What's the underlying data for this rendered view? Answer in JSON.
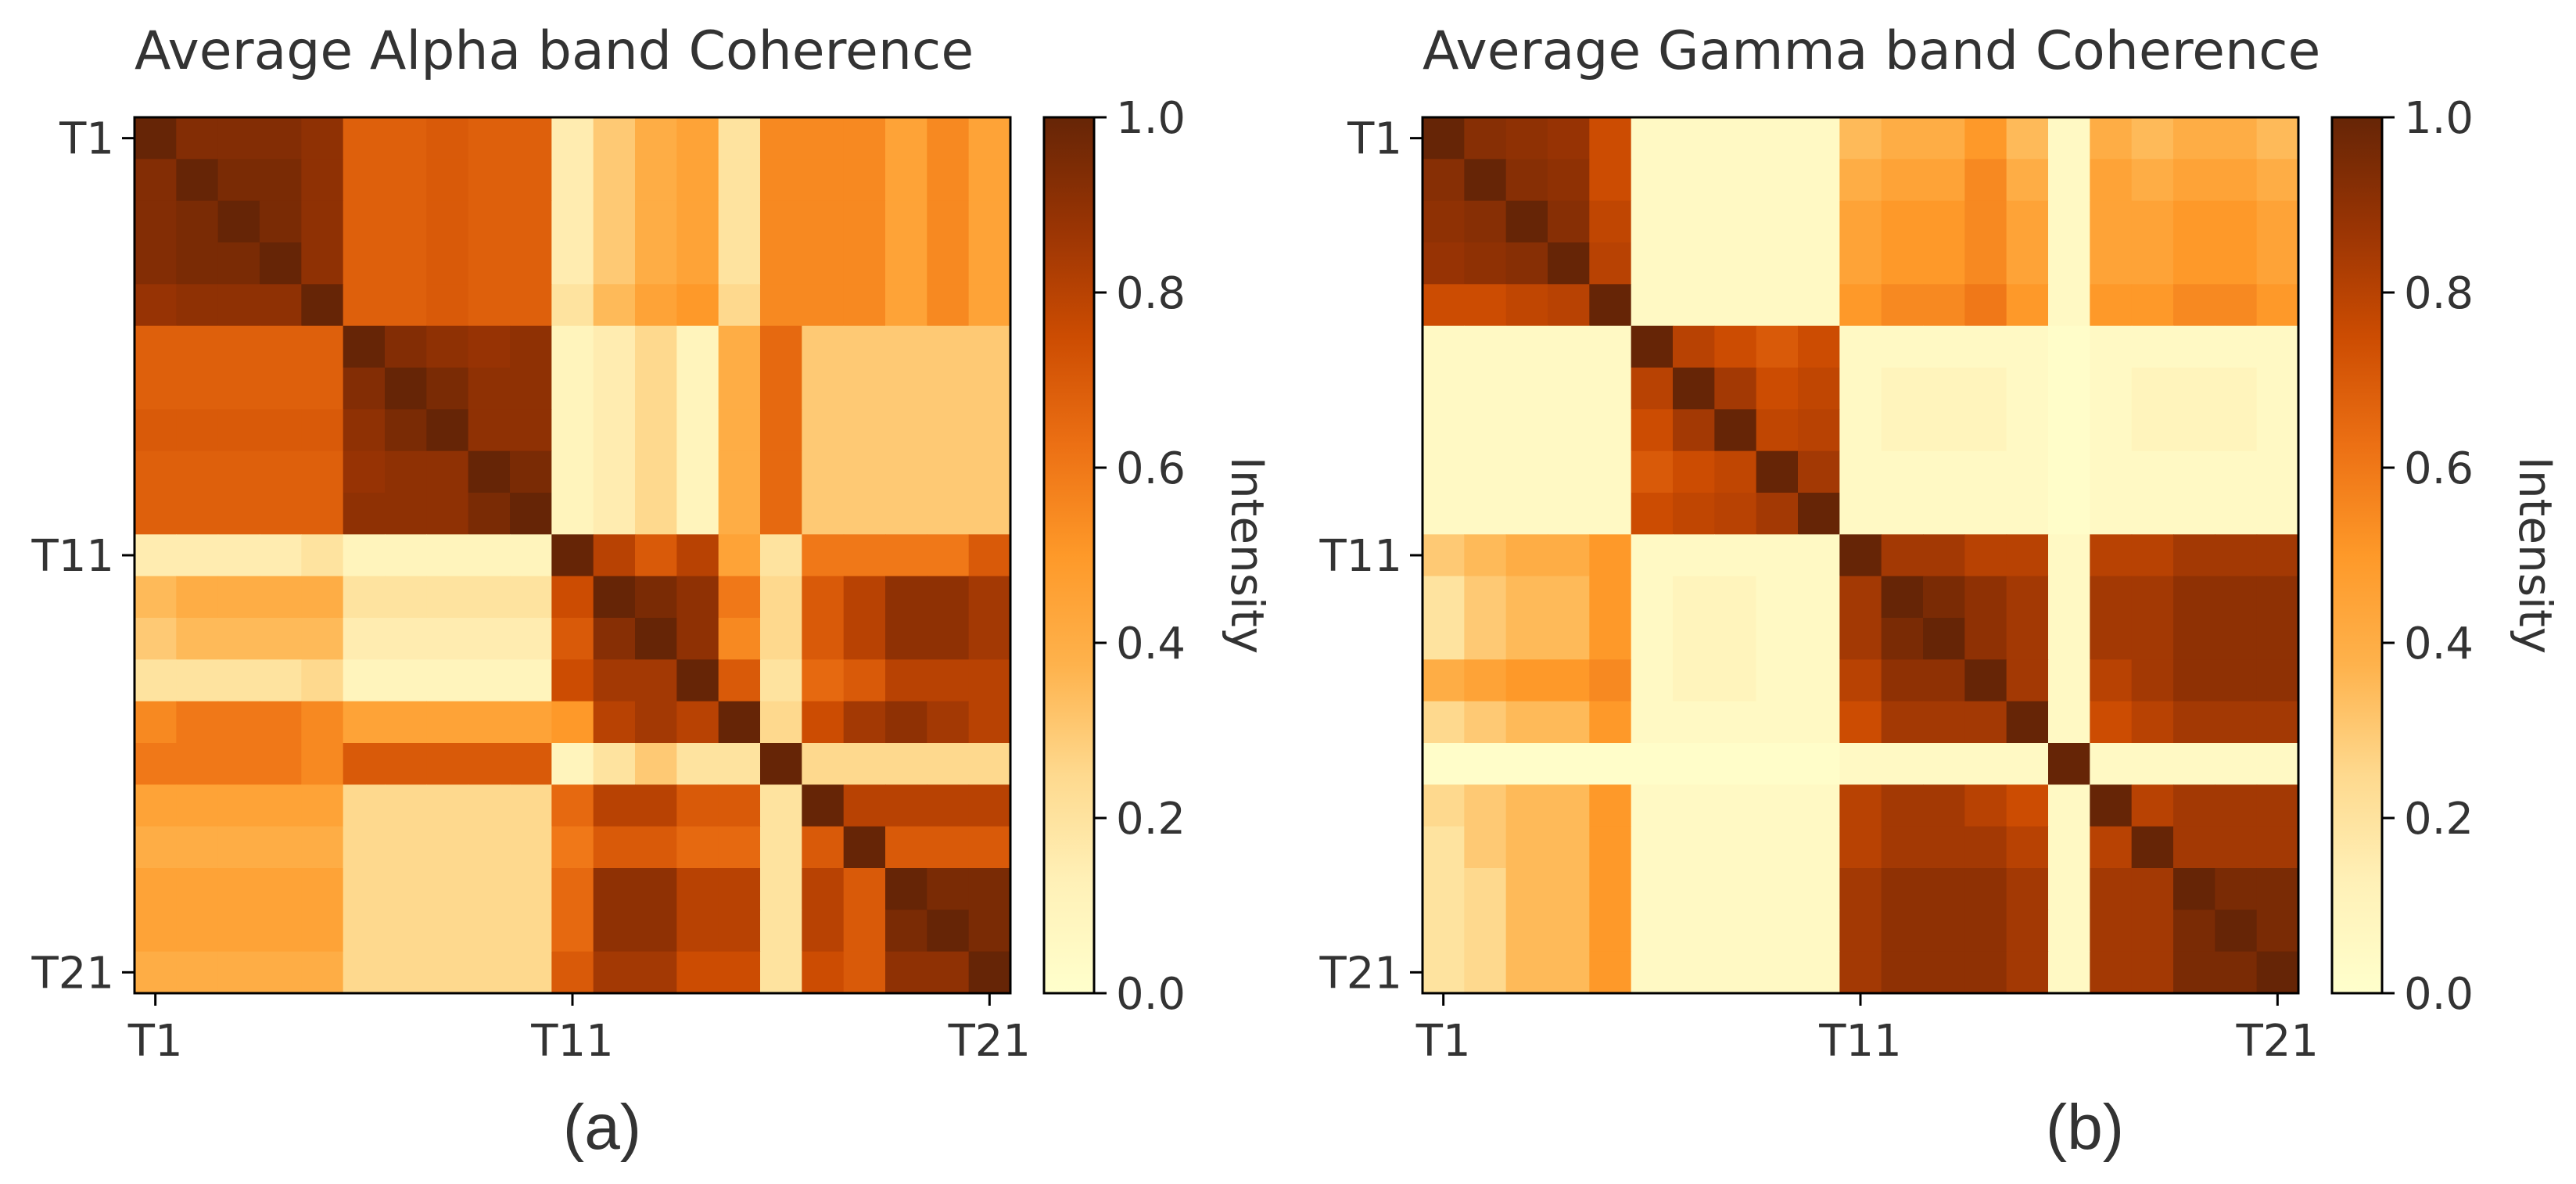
{
  "colors": {
    "colormap": [
      "#ffffcc",
      "#fff1b8",
      "#fed98e",
      "#feb24c",
      "#fe9929",
      "#ec7014",
      "#cc4c02",
      "#993404",
      "#662506"
    ],
    "axis": "#000000",
    "text": "#333333",
    "background": "#ffffff"
  },
  "chart_data": [
    {
      "type": "heatmap",
      "panel_label": "(a)",
      "title": "Average Alpha band Coherence",
      "xlabel": "",
      "ylabel": "",
      "n": 21,
      "row_labels": [
        "T1",
        "",
        "",
        "",
        "",
        "",
        "",
        "",
        "",
        "",
        "T11",
        "",
        "",
        "",
        "",
        "",
        "",
        "",
        "",
        "",
        "T21"
      ],
      "col_labels": [
        "T1",
        "",
        "",
        "",
        "",
        "",
        "",
        "",
        "",
        "",
        "T11",
        "",
        "",
        "",
        "",
        "",
        "",
        "",
        "",
        "",
        "T21"
      ],
      "tick_indices": [
        0,
        10,
        20
      ],
      "tick_labels": [
        "T1",
        "T11",
        "T21"
      ],
      "colorbar": {
        "label": "Intensity",
        "vmin": 0.0,
        "vmax": 1.0,
        "ticks": [
          0.0,
          0.2,
          0.4,
          0.6,
          0.8,
          1.0
        ],
        "tick_labels": [
          "0.0",
          "0.2",
          "0.4",
          "0.6",
          "0.8",
          "1.0"
        ]
      },
      "matrix": [
        [
          1.0,
          0.93,
          0.93,
          0.93,
          0.9,
          0.68,
          0.68,
          0.7,
          0.68,
          0.68,
          0.15,
          0.3,
          0.4,
          0.45,
          0.2,
          0.55,
          0.55,
          0.55,
          0.45,
          0.55,
          0.45
        ],
        [
          0.93,
          1.0,
          0.95,
          0.95,
          0.9,
          0.68,
          0.68,
          0.7,
          0.68,
          0.68,
          0.15,
          0.3,
          0.4,
          0.45,
          0.2,
          0.55,
          0.55,
          0.55,
          0.45,
          0.55,
          0.45
        ],
        [
          0.93,
          0.95,
          1.0,
          0.95,
          0.9,
          0.68,
          0.68,
          0.7,
          0.68,
          0.68,
          0.15,
          0.3,
          0.4,
          0.45,
          0.2,
          0.55,
          0.55,
          0.55,
          0.45,
          0.55,
          0.45
        ],
        [
          0.93,
          0.95,
          0.95,
          1.0,
          0.9,
          0.68,
          0.68,
          0.7,
          0.68,
          0.68,
          0.15,
          0.3,
          0.4,
          0.45,
          0.2,
          0.55,
          0.55,
          0.55,
          0.45,
          0.55,
          0.45
        ],
        [
          0.88,
          0.9,
          0.9,
          0.9,
          1.0,
          0.68,
          0.68,
          0.7,
          0.68,
          0.68,
          0.2,
          0.35,
          0.45,
          0.5,
          0.25,
          0.55,
          0.55,
          0.55,
          0.45,
          0.55,
          0.45
        ],
        [
          0.68,
          0.68,
          0.68,
          0.68,
          0.68,
          1.0,
          0.93,
          0.9,
          0.88,
          0.9,
          0.1,
          0.15,
          0.25,
          0.1,
          0.4,
          0.65,
          0.3,
          0.3,
          0.3,
          0.3,
          0.3
        ],
        [
          0.68,
          0.68,
          0.68,
          0.68,
          0.68,
          0.93,
          1.0,
          0.95,
          0.9,
          0.9,
          0.1,
          0.15,
          0.25,
          0.1,
          0.4,
          0.65,
          0.3,
          0.3,
          0.3,
          0.3,
          0.3
        ],
        [
          0.7,
          0.7,
          0.7,
          0.7,
          0.7,
          0.9,
          0.95,
          1.0,
          0.9,
          0.9,
          0.1,
          0.15,
          0.25,
          0.1,
          0.4,
          0.65,
          0.3,
          0.3,
          0.3,
          0.3,
          0.3
        ],
        [
          0.68,
          0.68,
          0.68,
          0.68,
          0.68,
          0.88,
          0.9,
          0.9,
          1.0,
          0.95,
          0.1,
          0.15,
          0.25,
          0.1,
          0.4,
          0.65,
          0.3,
          0.3,
          0.3,
          0.3,
          0.3
        ],
        [
          0.68,
          0.68,
          0.68,
          0.68,
          0.68,
          0.9,
          0.9,
          0.9,
          0.95,
          1.0,
          0.1,
          0.15,
          0.25,
          0.1,
          0.4,
          0.65,
          0.3,
          0.3,
          0.3,
          0.3,
          0.3
        ],
        [
          0.15,
          0.15,
          0.15,
          0.15,
          0.2,
          0.1,
          0.1,
          0.1,
          0.1,
          0.1,
          1.0,
          0.8,
          0.7,
          0.8,
          0.45,
          0.2,
          0.6,
          0.6,
          0.6,
          0.6,
          0.7
        ],
        [
          0.35,
          0.4,
          0.4,
          0.4,
          0.4,
          0.2,
          0.2,
          0.2,
          0.2,
          0.2,
          0.75,
          1.0,
          0.95,
          0.9,
          0.6,
          0.25,
          0.7,
          0.8,
          0.9,
          0.9,
          0.85
        ],
        [
          0.3,
          0.35,
          0.35,
          0.35,
          0.35,
          0.15,
          0.15,
          0.15,
          0.15,
          0.15,
          0.7,
          0.92,
          1.0,
          0.9,
          0.55,
          0.25,
          0.7,
          0.8,
          0.9,
          0.9,
          0.85
        ],
        [
          0.2,
          0.2,
          0.2,
          0.2,
          0.25,
          0.1,
          0.1,
          0.1,
          0.1,
          0.1,
          0.75,
          0.85,
          0.85,
          1.0,
          0.7,
          0.2,
          0.65,
          0.7,
          0.8,
          0.8,
          0.8
        ],
        [
          0.55,
          0.6,
          0.6,
          0.6,
          0.55,
          0.45,
          0.45,
          0.45,
          0.45,
          0.45,
          0.5,
          0.8,
          0.85,
          0.8,
          1.0,
          0.25,
          0.75,
          0.85,
          0.9,
          0.85,
          0.8
        ],
        [
          0.6,
          0.6,
          0.6,
          0.6,
          0.55,
          0.7,
          0.7,
          0.7,
          0.7,
          0.7,
          0.1,
          0.2,
          0.3,
          0.2,
          0.2,
          1.0,
          0.25,
          0.25,
          0.25,
          0.25,
          0.25
        ],
        [
          0.45,
          0.45,
          0.45,
          0.45,
          0.45,
          0.25,
          0.25,
          0.25,
          0.25,
          0.25,
          0.65,
          0.8,
          0.8,
          0.7,
          0.7,
          0.2,
          1.0,
          0.8,
          0.8,
          0.8,
          0.8
        ],
        [
          0.4,
          0.4,
          0.4,
          0.4,
          0.4,
          0.25,
          0.25,
          0.25,
          0.25,
          0.25,
          0.6,
          0.7,
          0.7,
          0.65,
          0.65,
          0.2,
          0.7,
          1.0,
          0.7,
          0.7,
          0.7
        ],
        [
          0.45,
          0.45,
          0.45,
          0.45,
          0.45,
          0.25,
          0.25,
          0.25,
          0.25,
          0.25,
          0.65,
          0.9,
          0.9,
          0.8,
          0.8,
          0.2,
          0.8,
          0.7,
          1.0,
          0.95,
          0.95
        ],
        [
          0.45,
          0.45,
          0.45,
          0.45,
          0.45,
          0.25,
          0.25,
          0.25,
          0.25,
          0.25,
          0.65,
          0.9,
          0.9,
          0.8,
          0.8,
          0.2,
          0.8,
          0.7,
          0.95,
          1.0,
          0.95
        ],
        [
          0.4,
          0.4,
          0.4,
          0.4,
          0.4,
          0.25,
          0.25,
          0.25,
          0.25,
          0.25,
          0.7,
          0.85,
          0.85,
          0.75,
          0.75,
          0.2,
          0.75,
          0.7,
          0.9,
          0.9,
          1.0
        ]
      ]
    },
    {
      "type": "heatmap",
      "panel_label": "(b)",
      "title": "Average Gamma band Coherence",
      "xlabel": "",
      "ylabel": "",
      "n": 21,
      "row_labels": [
        "T1",
        "",
        "",
        "",
        "",
        "",
        "",
        "",
        "",
        "",
        "T11",
        "",
        "",
        "",
        "",
        "",
        "",
        "",
        "",
        "",
        "T21"
      ],
      "col_labels": [
        "T1",
        "",
        "",
        "",
        "",
        "",
        "",
        "",
        "",
        "",
        "T11",
        "",
        "",
        "",
        "",
        "",
        "",
        "",
        "",
        "",
        "T21"
      ],
      "tick_indices": [
        0,
        10,
        20
      ],
      "tick_labels": [
        "T1",
        "T11",
        "T21"
      ],
      "colorbar": {
        "label": "Intensity",
        "vmin": 0.0,
        "vmax": 1.0,
        "ticks": [
          0.0,
          0.2,
          0.4,
          0.6,
          0.8,
          1.0
        ],
        "tick_labels": [
          "0.0",
          "0.2",
          "0.4",
          "0.6",
          "0.8",
          "1.0"
        ]
      },
      "matrix": [
        [
          1.0,
          0.92,
          0.9,
          0.88,
          0.75,
          0.05,
          0.05,
          0.05,
          0.05,
          0.05,
          0.35,
          0.4,
          0.4,
          0.5,
          0.35,
          0.05,
          0.4,
          0.35,
          0.4,
          0.4,
          0.35
        ],
        [
          0.92,
          1.0,
          0.92,
          0.9,
          0.75,
          0.05,
          0.05,
          0.05,
          0.05,
          0.05,
          0.4,
          0.45,
          0.45,
          0.55,
          0.4,
          0.05,
          0.45,
          0.4,
          0.45,
          0.45,
          0.4
        ],
        [
          0.9,
          0.92,
          1.0,
          0.92,
          0.78,
          0.05,
          0.05,
          0.05,
          0.05,
          0.05,
          0.45,
          0.5,
          0.5,
          0.55,
          0.45,
          0.05,
          0.45,
          0.45,
          0.5,
          0.5,
          0.45
        ],
        [
          0.88,
          0.9,
          0.92,
          1.0,
          0.8,
          0.05,
          0.05,
          0.05,
          0.05,
          0.05,
          0.45,
          0.5,
          0.5,
          0.55,
          0.45,
          0.05,
          0.45,
          0.45,
          0.5,
          0.5,
          0.45
        ],
        [
          0.75,
          0.75,
          0.78,
          0.8,
          1.0,
          0.05,
          0.05,
          0.05,
          0.05,
          0.05,
          0.5,
          0.55,
          0.55,
          0.6,
          0.5,
          0.05,
          0.5,
          0.5,
          0.55,
          0.55,
          0.5
        ],
        [
          0.05,
          0.05,
          0.05,
          0.05,
          0.05,
          1.0,
          0.8,
          0.75,
          0.7,
          0.75,
          0.05,
          0.05,
          0.05,
          0.05,
          0.05,
          0.02,
          0.05,
          0.05,
          0.05,
          0.05,
          0.05
        ],
        [
          0.05,
          0.05,
          0.05,
          0.05,
          0.05,
          0.8,
          1.0,
          0.85,
          0.75,
          0.78,
          0.05,
          0.1,
          0.1,
          0.1,
          0.05,
          0.02,
          0.05,
          0.1,
          0.1,
          0.1,
          0.05
        ],
        [
          0.05,
          0.05,
          0.05,
          0.05,
          0.05,
          0.75,
          0.85,
          1.0,
          0.78,
          0.8,
          0.05,
          0.1,
          0.1,
          0.1,
          0.05,
          0.02,
          0.05,
          0.1,
          0.1,
          0.1,
          0.05
        ],
        [
          0.05,
          0.05,
          0.05,
          0.05,
          0.05,
          0.7,
          0.75,
          0.78,
          1.0,
          0.85,
          0.05,
          0.05,
          0.05,
          0.05,
          0.05,
          0.02,
          0.05,
          0.05,
          0.05,
          0.05,
          0.05
        ],
        [
          0.05,
          0.05,
          0.05,
          0.05,
          0.05,
          0.75,
          0.78,
          0.8,
          0.85,
          1.0,
          0.05,
          0.05,
          0.05,
          0.05,
          0.05,
          0.02,
          0.05,
          0.05,
          0.05,
          0.05,
          0.05
        ],
        [
          0.3,
          0.35,
          0.4,
          0.4,
          0.5,
          0.05,
          0.05,
          0.05,
          0.05,
          0.05,
          1.0,
          0.85,
          0.85,
          0.8,
          0.8,
          0.05,
          0.8,
          0.8,
          0.85,
          0.85,
          0.85
        ],
        [
          0.2,
          0.3,
          0.35,
          0.35,
          0.5,
          0.05,
          0.1,
          0.1,
          0.05,
          0.05,
          0.85,
          1.0,
          0.95,
          0.9,
          0.85,
          0.05,
          0.85,
          0.85,
          0.9,
          0.9,
          0.9
        ],
        [
          0.2,
          0.3,
          0.35,
          0.35,
          0.5,
          0.05,
          0.1,
          0.1,
          0.05,
          0.05,
          0.85,
          0.95,
          1.0,
          0.9,
          0.85,
          0.05,
          0.85,
          0.85,
          0.9,
          0.9,
          0.9
        ],
        [
          0.4,
          0.45,
          0.5,
          0.5,
          0.55,
          0.05,
          0.1,
          0.1,
          0.05,
          0.05,
          0.8,
          0.9,
          0.9,
          1.0,
          0.85,
          0.05,
          0.8,
          0.85,
          0.9,
          0.9,
          0.9
        ],
        [
          0.25,
          0.3,
          0.35,
          0.35,
          0.5,
          0.05,
          0.05,
          0.05,
          0.05,
          0.05,
          0.75,
          0.85,
          0.85,
          0.85,
          1.0,
          0.05,
          0.75,
          0.8,
          0.85,
          0.85,
          0.85
        ],
        [
          0.02,
          0.02,
          0.02,
          0.02,
          0.02,
          0.02,
          0.02,
          0.02,
          0.02,
          0.02,
          0.05,
          0.05,
          0.05,
          0.05,
          0.05,
          1.0,
          0.05,
          0.05,
          0.05,
          0.05,
          0.05
        ],
        [
          0.25,
          0.3,
          0.35,
          0.35,
          0.5,
          0.05,
          0.05,
          0.05,
          0.05,
          0.05,
          0.8,
          0.85,
          0.85,
          0.8,
          0.75,
          0.05,
          1.0,
          0.8,
          0.85,
          0.85,
          0.85
        ],
        [
          0.2,
          0.3,
          0.35,
          0.35,
          0.5,
          0.05,
          0.05,
          0.05,
          0.05,
          0.05,
          0.8,
          0.85,
          0.85,
          0.85,
          0.8,
          0.05,
          0.8,
          1.0,
          0.85,
          0.85,
          0.85
        ],
        [
          0.2,
          0.25,
          0.35,
          0.35,
          0.5,
          0.05,
          0.05,
          0.05,
          0.05,
          0.05,
          0.85,
          0.9,
          0.9,
          0.9,
          0.85,
          0.05,
          0.85,
          0.85,
          1.0,
          0.95,
          0.95
        ],
        [
          0.2,
          0.25,
          0.35,
          0.35,
          0.5,
          0.05,
          0.05,
          0.05,
          0.05,
          0.05,
          0.85,
          0.9,
          0.9,
          0.9,
          0.85,
          0.05,
          0.85,
          0.85,
          0.95,
          1.0,
          0.95
        ],
        [
          0.2,
          0.25,
          0.35,
          0.35,
          0.5,
          0.05,
          0.05,
          0.05,
          0.05,
          0.05,
          0.85,
          0.9,
          0.9,
          0.9,
          0.85,
          0.05,
          0.85,
          0.85,
          0.95,
          0.95,
          1.0
        ]
      ]
    }
  ]
}
